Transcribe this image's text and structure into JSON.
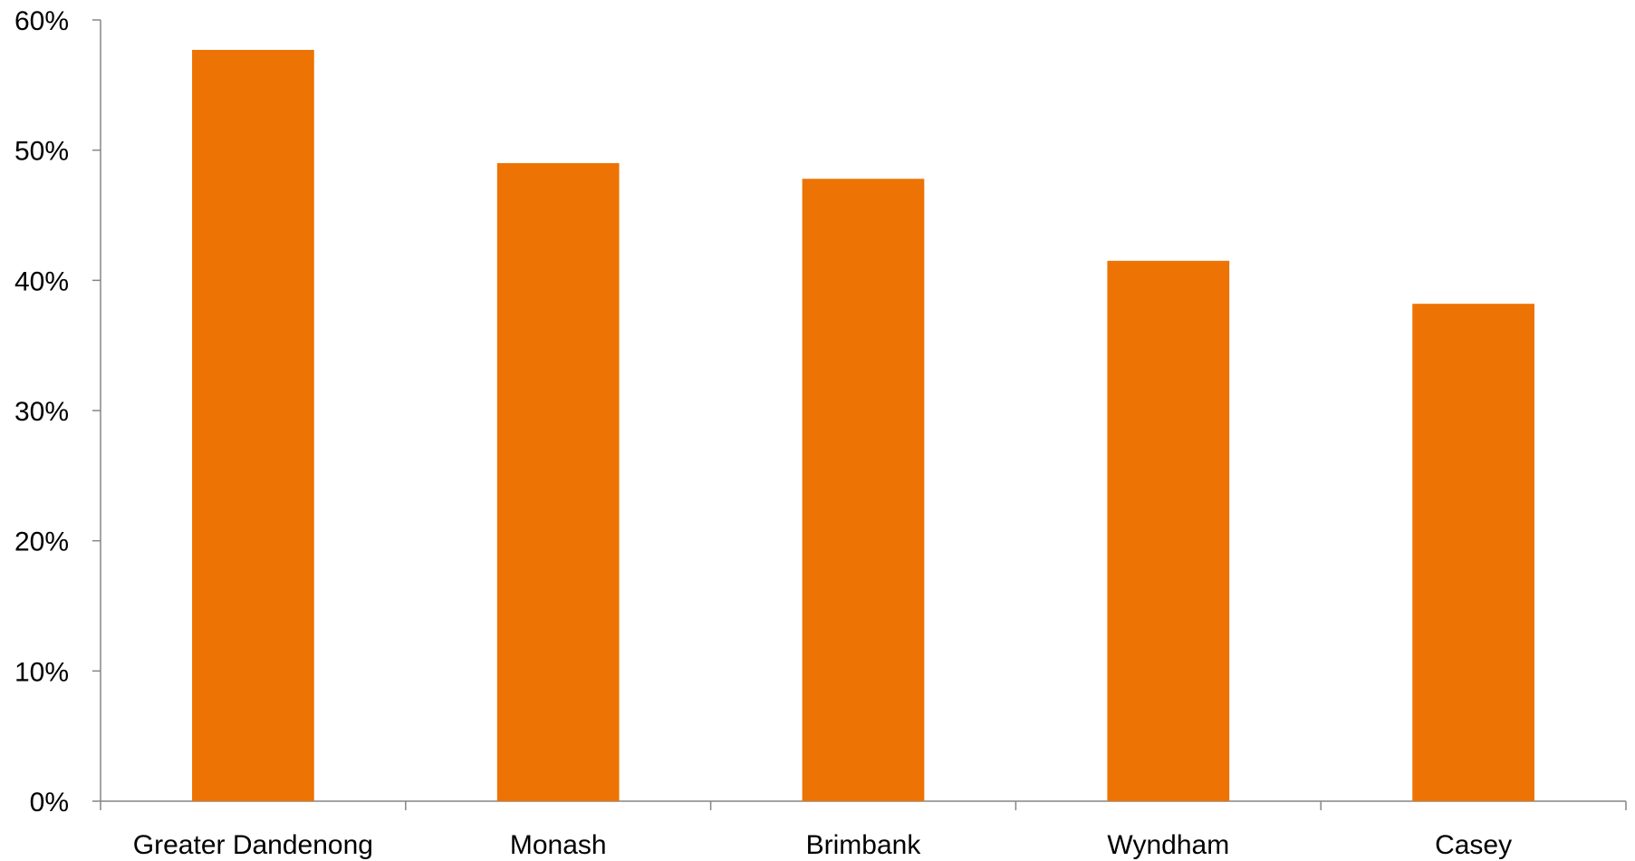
{
  "chart_data": {
    "type": "bar",
    "categories": [
      "Greater Dandenong",
      "Monash",
      "Brimbank",
      "Wyndham",
      "Casey"
    ],
    "values": [
      57.7,
      49.0,
      47.8,
      41.5,
      38.2
    ],
    "ylim": [
      0,
      60
    ],
    "yticks": [
      0,
      10,
      20,
      30,
      40,
      50,
      60
    ],
    "ytick_labels": [
      "0%",
      "10%",
      "20%",
      "30%",
      "40%",
      "50%",
      "60%"
    ],
    "grid": false,
    "legend": "none",
    "colors": {
      "bar": "#EC7304",
      "axis": "#868686"
    }
  }
}
